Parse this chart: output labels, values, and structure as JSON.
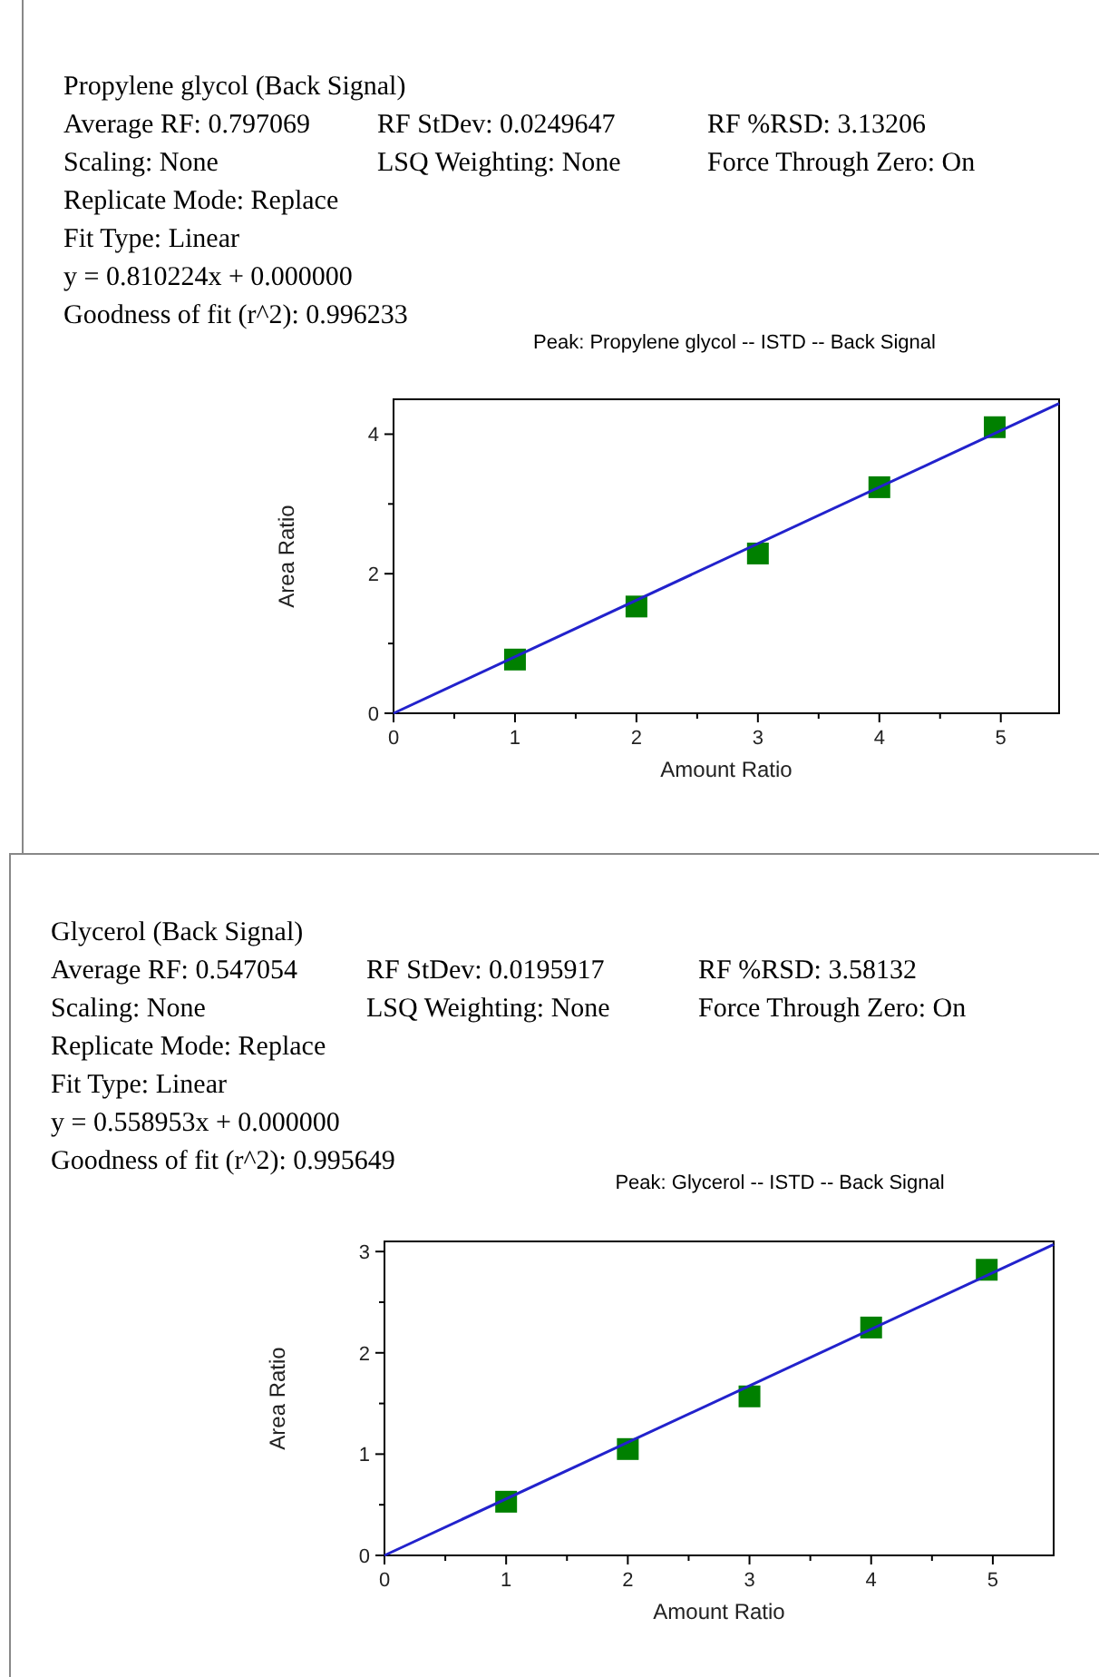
{
  "chart_data": [
    {
      "type": "scatter",
      "title": "Peak: Propylene glycol -- ISTD -- Back Signal",
      "xlabel": "Amount Ratio",
      "ylabel": "Area Ratio",
      "annotations": [
        "Propylene glycol (Back Signal)",
        "Average RF: 0.797069",
        "RF StDev: 0.0249647",
        "RF %RSD: 3.13206",
        "Scaling: None",
        "LSQ Weighting: None",
        "Force Through Zero: On",
        "Replicate Mode: Replace",
        "Fit Type: Linear",
        "y = 0.810224x + 0.000000",
        "Goodness of fit (r^2): 0.996233"
      ],
      "x": [
        1,
        2,
        3,
        4,
        4.95
      ],
      "grid": false,
      "series": [
        {
          "color": "#008000",
          "values": [
            0.77,
            1.53,
            2.29,
            3.24,
            4.1
          ],
          "marker": "square"
        },
        {
          "type": "line",
          "color": "#2222cc",
          "x": [
            0,
            5.48
          ],
          "values": [
            0,
            4.44
          ],
          "marker": "none",
          "line_style": "solid"
        }
      ],
      "xlim": [
        0,
        5.48
      ],
      "ylim": [
        0,
        4.5
      ],
      "xticks": [
        0,
        {
          "value": 0.5,
          "label": null
        },
        1,
        {
          "value": 1.5,
          "label": null
        },
        2,
        {
          "value": 2.5,
          "label": null
        },
        3,
        {
          "value": 3.5,
          "label": null
        },
        4,
        {
          "value": 4.5,
          "label": null
        },
        5
      ],
      "yticks": [
        0,
        {
          "value": 1,
          "label": null
        },
        2,
        {
          "value": 3,
          "label": null
        },
        4
      ]
    },
    {
      "type": "scatter",
      "title": "Peak: Glycerol -- ISTD -- Back Signal",
      "xlabel": "Amount Ratio",
      "ylabel": "Area Ratio",
      "annotations": [
        "Glycerol (Back Signal)",
        "Average RF: 0.547054",
        "RF StDev: 0.0195917",
        "RF %RSD: 3.58132",
        "Scaling: None",
        "LSQ Weighting: None",
        "Force Through Zero: On",
        "Replicate Mode: Replace",
        "Fit Type: Linear",
        "y = 0.558953x + 0.000000",
        "Goodness of fit (r^2): 0.995649"
      ],
      "x": [
        1,
        2,
        3,
        4,
        4.95
      ],
      "grid": false,
      "series": [
        {
          "color": "#008000",
          "values": [
            0.53,
            1.05,
            1.57,
            2.25,
            2.82
          ],
          "marker": "square"
        },
        {
          "type": "line",
          "color": "#2222cc",
          "x": [
            0,
            5.5
          ],
          "values": [
            0,
            3.07
          ],
          "marker": "none",
          "line_style": "solid"
        }
      ],
      "xlim": [
        0,
        5.5
      ],
      "ylim": [
        0,
        3.1
      ],
      "xticks": [
        0,
        {
          "value": 0.5,
          "label": null
        },
        1,
        {
          "value": 1.5,
          "label": null
        },
        2,
        {
          "value": 2.5,
          "label": null
        },
        3,
        {
          "value": 3.5,
          "label": null
        },
        4,
        {
          "value": 4.5,
          "label": null
        },
        5
      ],
      "yticks": [
        0,
        {
          "value": 0.5,
          "label": null
        },
        1,
        {
          "value": 1.5,
          "label": null
        },
        2,
        {
          "value": 2.5,
          "label": null
        },
        3
      ]
    }
  ]
}
